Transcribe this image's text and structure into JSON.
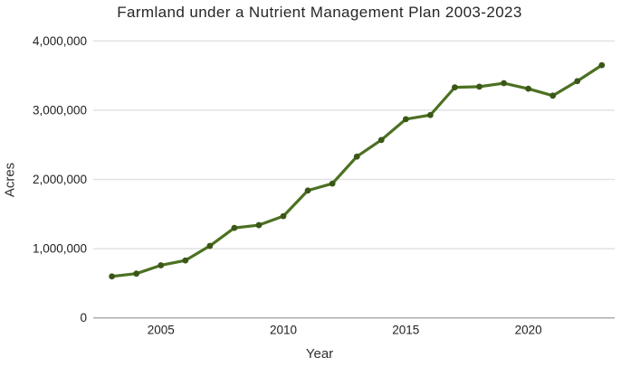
{
  "chart_data": {
    "type": "line",
    "title": "Farmland under a Nutrient Management Plan 2003-2023",
    "xlabel": "Year",
    "ylabel": "Acres",
    "x": [
      2003,
      2004,
      2005,
      2006,
      2007,
      2008,
      2009,
      2010,
      2011,
      2012,
      2013,
      2014,
      2015,
      2016,
      2017,
      2018,
      2019,
      2020,
      2021,
      2022,
      2023
    ],
    "values": [
      600000,
      640000,
      760000,
      830000,
      1040000,
      1300000,
      1340000,
      1470000,
      1840000,
      1940000,
      2330000,
      2570000,
      2870000,
      2930000,
      3330000,
      3340000,
      3390000,
      3310000,
      3210000,
      3420000,
      3650000
    ],
    "series_name": "Farmland under a nutrient management plan",
    "xlim": [
      2003,
      2023
    ],
    "ylim": [
      0,
      4000000
    ],
    "xticks": [
      {
        "value": 2005,
        "label": "2005"
      },
      {
        "value": 2010,
        "label": "2010"
      },
      {
        "value": 2015,
        "label": "2015"
      },
      {
        "value": 2020,
        "label": "2020"
      }
    ],
    "yticks": [
      {
        "value": 0,
        "label": "0"
      },
      {
        "value": 1000000,
        "label": "1,000,000"
      },
      {
        "value": 2000000,
        "label": "2,000,000"
      },
      {
        "value": 3000000,
        "label": "3,000,000"
      },
      {
        "value": 4000000,
        "label": "4,000,000"
      }
    ],
    "grid": "horizontal-only",
    "legend": "none",
    "colors": {
      "line": "#4c7122",
      "marker": "#3a5717",
      "gridline": "#e2e2e2",
      "axis_line": "#a6a6a6",
      "tick_text": "#1f1f1f",
      "title_text": "#262626"
    }
  }
}
